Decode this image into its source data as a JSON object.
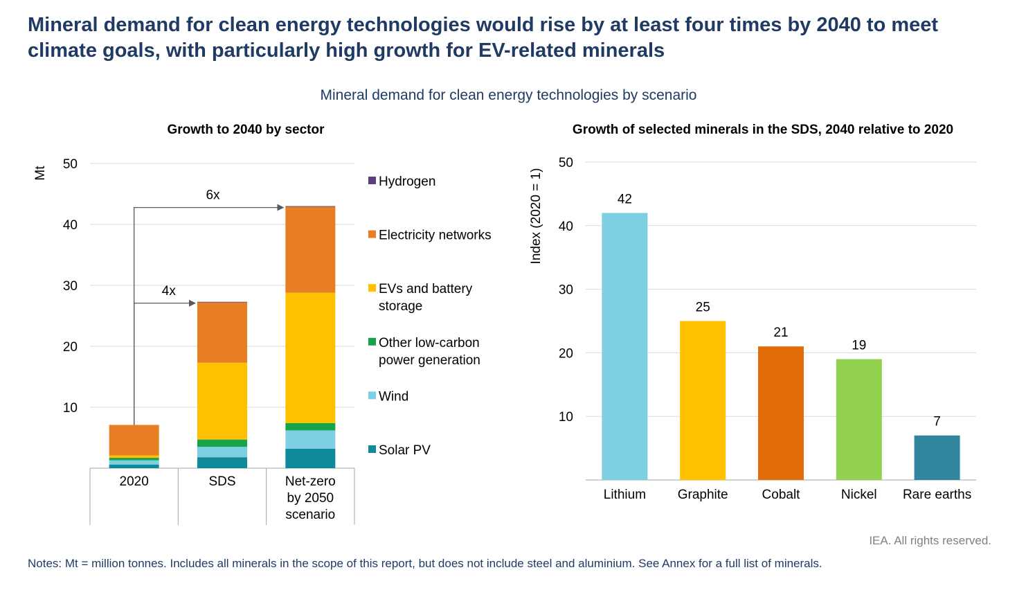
{
  "title": "Mineral demand for clean energy technologies would rise by at least four times by 2040 to meet climate goals, with particularly high growth for EV-related minerals",
  "subtitle": "Mineral demand for clean energy technologies by scenario",
  "footer": {
    "rights": "IEA. All rights reserved.",
    "notes": "Notes: Mt = million tonnes. Includes all minerals in the scope of this report, but does not include steel and aluminium. See Annex for a full list of minerals."
  },
  "chart_data": [
    {
      "type": "bar",
      "stacked": true,
      "title": "Growth to 2040 by sector",
      "ylabel": "Mt",
      "xlabel": "",
      "ylim": [
        0,
        50
      ],
      "yticks": [
        10,
        20,
        30,
        40,
        50
      ],
      "grid": true,
      "legend": "right",
      "categories": [
        "2020",
        "SDS",
        "Net-zero\nby 2050\nscenario"
      ],
      "series": [
        {
          "name": "Solar PV",
          "color": "#0e8a9c",
          "values": [
            0.6,
            1.8,
            3.2
          ]
        },
        {
          "name": "Wind",
          "color": "#7fcfe3",
          "values": [
            0.7,
            1.7,
            3.0
          ]
        },
        {
          "name": "Other low-carbon power generation",
          "color": "#16a34a",
          "values": [
            0.4,
            1.2,
            1.2
          ]
        },
        {
          "name": "EVs and battery storage",
          "color": "#ffc000",
          "values": [
            0.4,
            12.6,
            21.4
          ]
        },
        {
          "name": "Electricity networks",
          "color": "#e87e23",
          "values": [
            5.0,
            9.9,
            14.1
          ]
        },
        {
          "name": "Hydrogen",
          "color": "#5b3e7a",
          "values": [
            0.0,
            0.1,
            0.1
          ]
        }
      ],
      "annotations": [
        {
          "label": "6x",
          "from": "2020",
          "to": "Net-zero\nby 2050\nscenario"
        },
        {
          "label": "4x",
          "from": "2020",
          "to": "SDS"
        }
      ]
    },
    {
      "type": "bar",
      "title": "Growth of selected minerals in the SDS, 2040 relative to 2020",
      "ylabel": "Index (2020 = 1)",
      "xlabel": "",
      "ylim": [
        0,
        50
      ],
      "yticks": [
        10,
        20,
        30,
        40,
        50
      ],
      "grid": true,
      "categories": [
        "Lithium",
        "Graphite",
        "Cobalt",
        "Nickel",
        "Rare earths"
      ],
      "values": [
        42,
        25,
        21,
        19,
        7
      ],
      "data_labels": [
        "42",
        "25",
        "21",
        "19",
        "7"
      ],
      "colors": [
        "#7fcfe3",
        "#ffc000",
        "#e36c0a",
        "#92d050",
        "#31859c"
      ]
    }
  ]
}
